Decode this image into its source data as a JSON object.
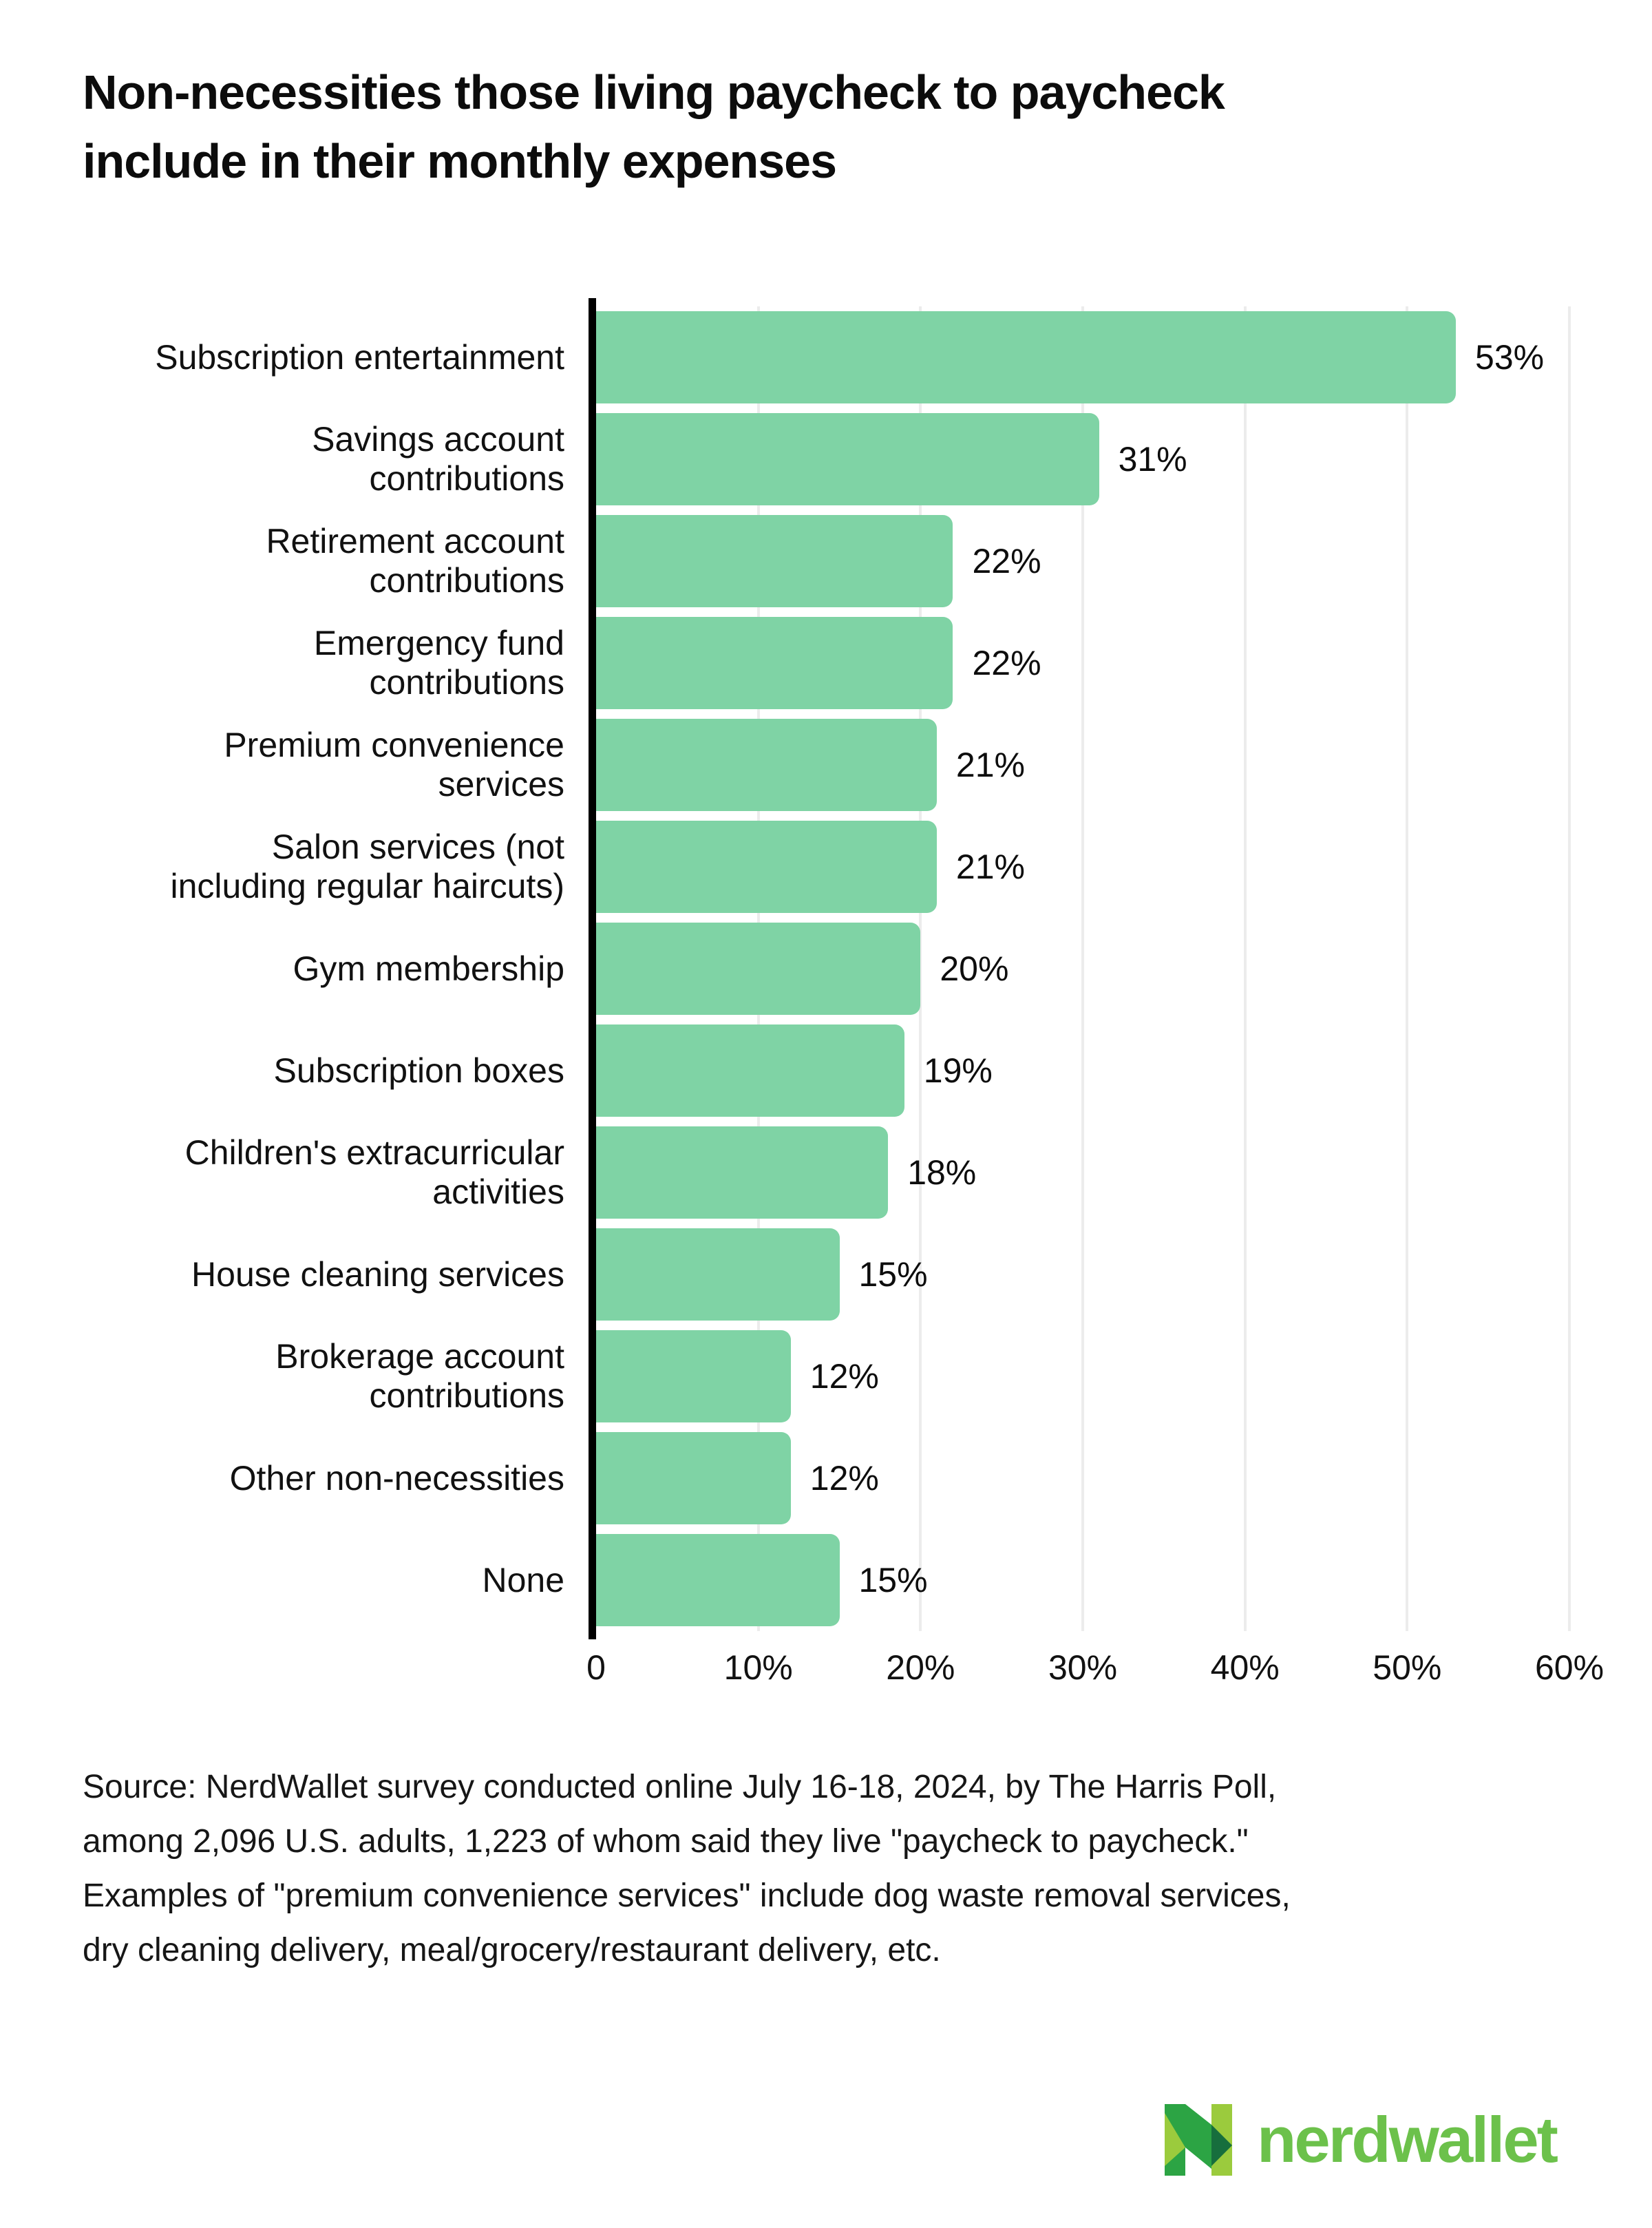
{
  "title": {
    "line1": "Non-necessities those living paycheck to paycheck",
    "line2": "include in their monthly expenses"
  },
  "chart_data": {
    "type": "bar",
    "orientation": "horizontal",
    "title": "Non-necessities those living paycheck to paycheck include in their monthly expenses",
    "categories": [
      "Subscription entertainment",
      "Savings account contributions",
      "Retirement account contributions",
      "Emergency fund contributions",
      "Premium convenience services",
      "Salon services (not including regular haircuts)",
      "Gym membership",
      "Subscription boxes",
      "Children's extracurricular activities",
      "House cleaning services",
      "Brokerage account contributions",
      "Other non-necessities",
      "None"
    ],
    "label_lines": [
      [
        "Subscription entertainment"
      ],
      [
        "Savings account",
        "contributions"
      ],
      [
        "Retirement account",
        "contributions"
      ],
      [
        "Emergency fund",
        "contributions"
      ],
      [
        "Premium convenience",
        "services"
      ],
      [
        "Salon services (not",
        "including regular haircuts)"
      ],
      [
        "Gym membership"
      ],
      [
        "Subscription boxes"
      ],
      [
        "Children's extracurricular",
        "activities"
      ],
      [
        "House cleaning services"
      ],
      [
        "Brokerage account",
        "contributions"
      ],
      [
        "Other non-necessities"
      ],
      [
        "None"
      ]
    ],
    "values": [
      53,
      31,
      22,
      22,
      21,
      21,
      20,
      19,
      18,
      15,
      12,
      12,
      15
    ],
    "display_values": [
      "53%",
      "31%",
      "22%",
      "22%",
      "21%",
      "21%",
      "20%",
      "19%",
      "18%",
      "15%",
      "12%",
      "12%",
      "15%"
    ],
    "xlabel_ticks": [
      "0",
      "10%",
      "20%",
      "30%",
      "40%",
      "50%",
      "60%"
    ],
    "xlim": [
      0,
      60
    ],
    "grid": "vertical",
    "legend": "none",
    "bar_color": "#7fd3a5",
    "axis_color": "#000000",
    "gridline_color": "#ececec"
  },
  "source": {
    "lines": [
      "Source: NerdWallet survey conducted online July 16-18, 2024, by The Harris Poll,",
      "among 2,096 U.S. adults, 1,223 of whom said they live \"paycheck to paycheck.\"",
      "Examples of \"premium convenience services\" include dog waste removal services,",
      "dry cleaning delivery, meal/grocery/restaurant delivery, etc."
    ]
  },
  "logo": {
    "wordmark": "nerdwallet",
    "wordmark_color": "#6cc14b",
    "icon_light_green": "#9bcb3d",
    "icon_kelly_green": "#2ca444",
    "icon_dark_green": "#176e3d"
  }
}
